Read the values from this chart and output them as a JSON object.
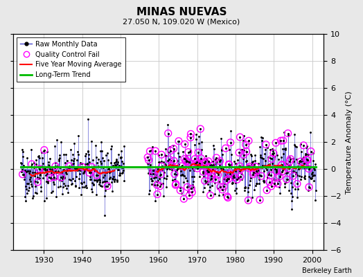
{
  "title": "MINAS NUEVAS",
  "subtitle": "27.050 N, 109.020 W (Mexico)",
  "ylabel": "Temperature Anomaly (°C)",
  "xlabel_credit": "Berkeley Earth",
  "ylim": [
    -6,
    10
  ],
  "yticks": [
    -6,
    -4,
    -2,
    0,
    2,
    4,
    6,
    8,
    10
  ],
  "xlim": [
    1922,
    2003
  ],
  "xticks": [
    1930,
    1940,
    1950,
    1960,
    1970,
    1980,
    1990,
    2000
  ],
  "bg_color": "#e8e8e8",
  "plot_bg_color": "#ffffff",
  "grid_color": "#c8c8c8",
  "raw_color": "#4444cc",
  "qc_color": "#ff00ff",
  "moving_avg_color": "#ff0000",
  "trend_color": "#00bb00",
  "period1_start": 1924,
  "period1_end": 1951,
  "period2_start": 1957,
  "period2_end": 2001,
  "seed1": 42,
  "seed2": 77
}
